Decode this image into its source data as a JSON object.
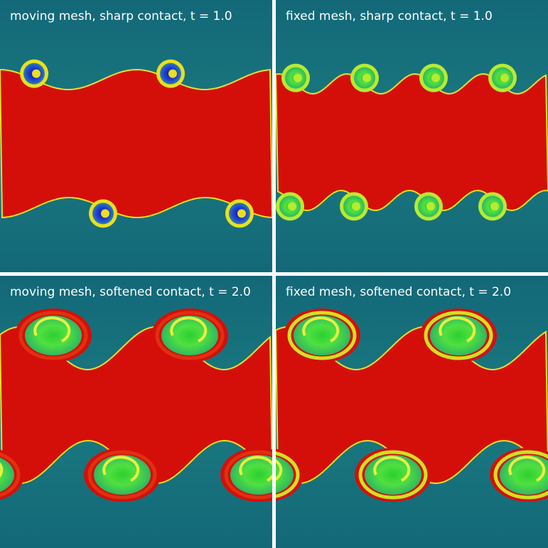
{
  "panels": [
    {
      "label": "moving mesh, sharp contact, t = 1.0"
    },
    {
      "label": "fixed mesh, sharp contact, t = 1.0"
    },
    {
      "label": "moving mesh, softened contact, t = 2.0"
    },
    {
      "label": "fixed mesh, softened contact, t = 2.0"
    }
  ]
}
